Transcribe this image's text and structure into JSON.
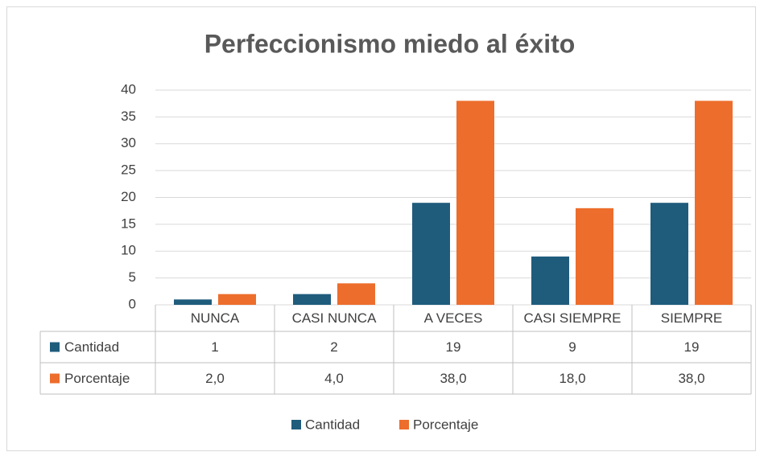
{
  "chart_data": {
    "type": "bar",
    "title": "Perfeccionismo miedo al éxito",
    "categories": [
      "NUNCA",
      "CASI NUNCA",
      "A VECES",
      "CASI SIEMPRE",
      "SIEMPRE"
    ],
    "series": [
      {
        "name": "Cantidad",
        "color": "#1f5c7c",
        "values": [
          1,
          2,
          19,
          9,
          19
        ]
      },
      {
        "name": "Porcentaje",
        "color": "#ed6d2c",
        "values": [
          2,
          4,
          38,
          18,
          38
        ],
        "value_labels": [
          "2,0",
          "4,0",
          "38,0",
          "18,0",
          "38,0"
        ]
      }
    ],
    "ylim": [
      0,
      40
    ],
    "yticks": [
      0,
      5,
      10,
      15,
      20,
      25,
      30,
      35,
      40
    ],
    "grid": true,
    "legend": "bottom"
  }
}
